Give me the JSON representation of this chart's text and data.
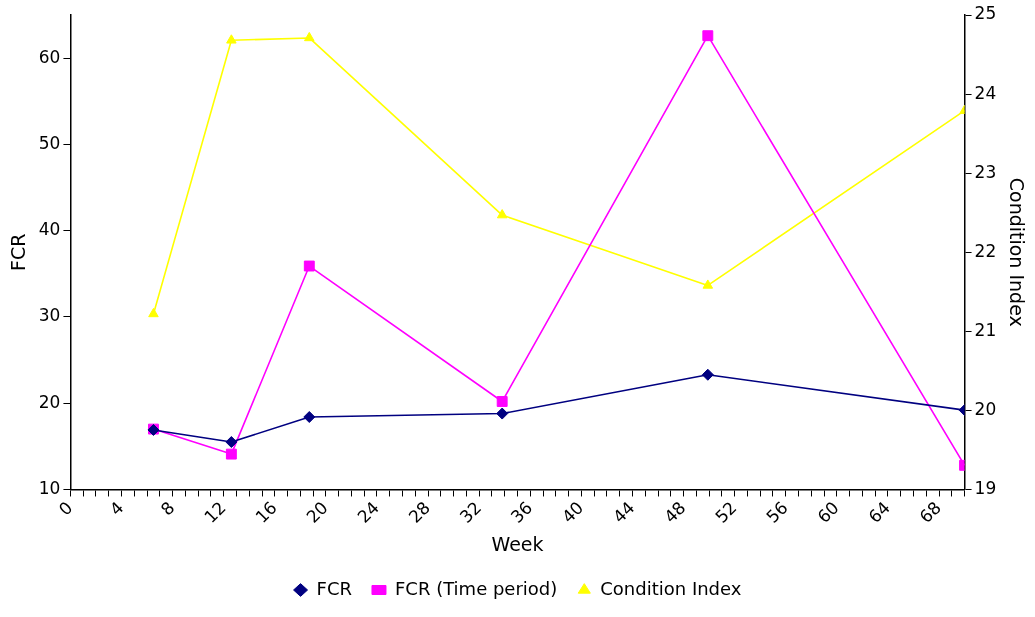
{
  "chart_data": {
    "type": "line",
    "xlabel": "Week",
    "ylabel": "FCR",
    "y2label": "Condition Index",
    "x": [
      6.5,
      12.6,
      18.7,
      33.8,
      49.9,
      70
    ],
    "series": [
      {
        "name": "FCR",
        "color": "#000080",
        "marker": "diamond",
        "values": [
          16.9,
          15.5,
          18.4,
          18.8,
          23.3,
          19.2
        ]
      },
      {
        "name": "FCR (Time period)",
        "color": "#ff00ff",
        "marker": "square",
        "values": [
          17.0,
          14.1,
          35.9,
          20.2,
          62.6,
          12.8
        ]
      },
      {
        "name": "Condition Index",
        "color": "#ffff00",
        "marker": "triangle",
        "axis": "y2",
        "values": [
          21.22,
          24.68,
          24.71,
          22.47,
          21.58,
          23.79
        ]
      }
    ],
    "xlim": [
      0,
      70
    ],
    "xticks": [
      0,
      {
        "value": 1,
        "label": null
      },
      {
        "value": 2,
        "label": null
      },
      {
        "value": 3,
        "label": null
      },
      4,
      {
        "value": 5,
        "label": null
      },
      {
        "value": 6,
        "label": null
      },
      {
        "value": 7,
        "label": null
      },
      8,
      {
        "value": 9,
        "label": null
      },
      {
        "value": 10,
        "label": null
      },
      {
        "value": 11,
        "label": null
      },
      12,
      {
        "value": 13,
        "label": null
      },
      {
        "value": 14,
        "label": null
      },
      {
        "value": 15,
        "label": null
      },
      16,
      {
        "value": 17,
        "label": null
      },
      {
        "value": 18,
        "label": null
      },
      {
        "value": 19,
        "label": null
      },
      20,
      {
        "value": 21,
        "label": null
      },
      {
        "value": 22,
        "label": null
      },
      {
        "value": 23,
        "label": null
      },
      24,
      {
        "value": 25,
        "label": null
      },
      {
        "value": 26,
        "label": null
      },
      {
        "value": 27,
        "label": null
      },
      28,
      {
        "value": 29,
        "label": null
      },
      {
        "value": 30,
        "label": null
      },
      {
        "value": 31,
        "label": null
      },
      32,
      {
        "value": 33,
        "label": null
      },
      {
        "value": 34,
        "label": null
      },
      {
        "value": 35,
        "label": null
      },
      36,
      {
        "value": 37,
        "label": null
      },
      {
        "value": 38,
        "label": null
      },
      {
        "value": 39,
        "label": null
      },
      40,
      {
        "value": 41,
        "label": null
      },
      {
        "value": 42,
        "label": null
      },
      {
        "value": 43,
        "label": null
      },
      44,
      {
        "value": 45,
        "label": null
      },
      {
        "value": 46,
        "label": null
      },
      {
        "value": 47,
        "label": null
      },
      48,
      {
        "value": 49,
        "label": null
      },
      {
        "value": 50,
        "label": null
      },
      {
        "value": 51,
        "label": null
      },
      52,
      {
        "value": 53,
        "label": null
      },
      {
        "value": 54,
        "label": null
      },
      {
        "value": 55,
        "label": null
      },
      56,
      {
        "value": 57,
        "label": null
      },
      {
        "value": 58,
        "label": null
      },
      {
        "value": 59,
        "label": null
      },
      60,
      {
        "value": 61,
        "label": null
      },
      {
        "value": 62,
        "label": null
      },
      {
        "value": 63,
        "label": null
      },
      64,
      {
        "value": 65,
        "label": null
      },
      {
        "value": 66,
        "label": null
      },
      {
        "value": 67,
        "label": null
      },
      68,
      {
        "value": 69,
        "label": null
      },
      {
        "value": 70,
        "label": null
      }
    ],
    "ylim": [
      10,
      65
    ],
    "yticks": [
      10,
      20,
      30,
      40,
      50,
      60
    ],
    "y2lim": [
      19,
      25
    ],
    "y2ticks": [
      19,
      20,
      21,
      22,
      23,
      24,
      25
    ],
    "grid": false,
    "legend": "bottom",
    "line_style": "solid"
  }
}
